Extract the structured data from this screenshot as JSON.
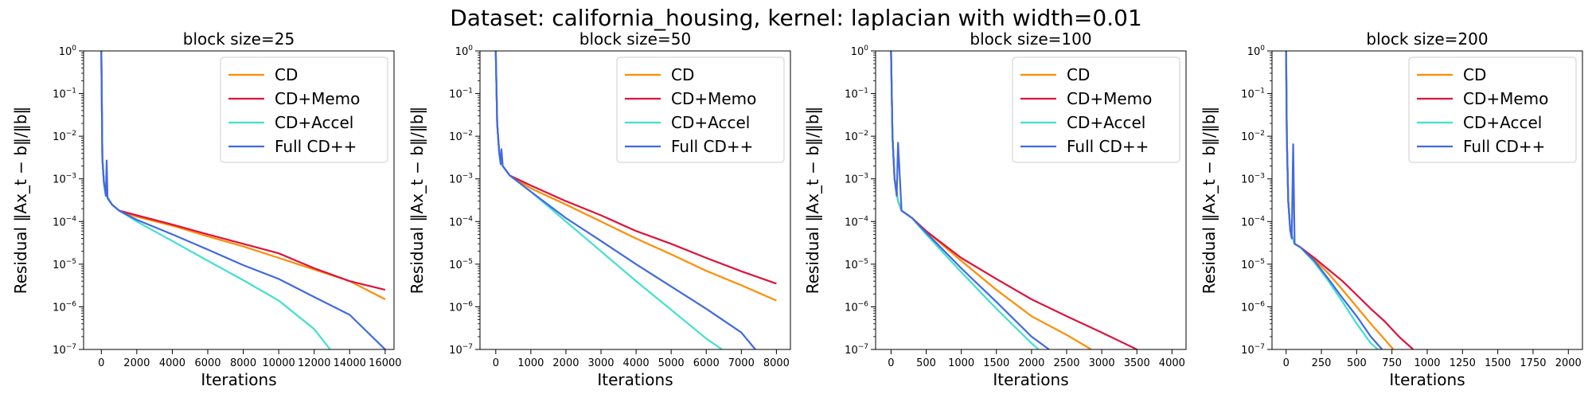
{
  "title": "Dataset: california_housing, kernel: laplacian with width=0.01",
  "colors": {
    "CD": "#ff8c00",
    "CD+Memo": "#dc143c",
    "CD+Accel": "#40e0d0",
    "Full CD++": "#4169e1"
  },
  "chart_data": [
    {
      "type": "line",
      "title": "block size=25",
      "xlabel": "Iterations",
      "ylabel": "Residual ‖Ax_t − b‖/‖b‖",
      "yscale": "log",
      "xlim": [
        -1000,
        16500
      ],
      "ylim": [
        1e-07,
        1
      ],
      "xticks": [
        0,
        2000,
        4000,
        6000,
        8000,
        10000,
        12000,
        14000,
        16000
      ],
      "yticks": [
        "10^0",
        "10^-1",
        "10^-2",
        "10^-3",
        "10^-4",
        "10^-5",
        "10^-6",
        "10^-7"
      ],
      "legend": "top-right",
      "series": [
        {
          "name": "CD",
          "x": [
            0,
            60,
            150,
            300,
            600,
            1000,
            2000,
            4000,
            6000,
            8000,
            10000,
            12000,
            14000,
            16000
          ],
          "y": [
            1,
            0.003,
            0.0008,
            0.0004,
            0.00025,
            0.00018,
            0.00013,
            8e-05,
            4.5e-05,
            2.6e-05,
            1.4e-05,
            7.5e-06,
            4e-06,
            1.5e-06
          ]
        },
        {
          "name": "CD+Memo",
          "x": [
            0,
            60,
            150,
            300,
            600,
            1000,
            2000,
            4000,
            6000,
            8000,
            10000,
            12000,
            14000,
            16000
          ],
          "y": [
            1,
            0.003,
            0.0008,
            0.0004,
            0.00025,
            0.00018,
            0.00014,
            8.5e-05,
            5e-05,
            3e-05,
            1.8e-05,
            8e-06,
            4e-06,
            2.5e-06
          ]
        },
        {
          "name": "CD+Accel",
          "x": [
            0,
            60,
            150,
            300,
            600,
            1000,
            2000,
            4000,
            6000,
            8000,
            10000,
            12000,
            12900
          ],
          "y": [
            1,
            0.003,
            0.0008,
            0.0004,
            0.00025,
            0.00018,
            0.0001,
            3.5e-05,
            1.2e-05,
            4.2e-06,
            1.4e-06,
            3e-07,
            1e-07
          ]
        },
        {
          "name": "Full CD++",
          "x": [
            0,
            60,
            150,
            250,
            300,
            350,
            600,
            1000,
            2000,
            4000,
            6000,
            8000,
            10000,
            12000,
            14000,
            16000
          ],
          "y": [
            1,
            0.003,
            0.0008,
            0.0004,
            0.0027,
            0.00035,
            0.00025,
            0.00018,
            0.00011,
            5e-05,
            2.2e-05,
            9.5e-06,
            4.5e-06,
            1.7e-06,
            6.5e-07,
            1e-07
          ]
        }
      ]
    },
    {
      "type": "line",
      "title": "block size=50",
      "xlabel": "Iterations",
      "ylabel": "Residual ‖Ax_t − b‖/‖b‖",
      "yscale": "log",
      "xlim": [
        -450,
        8400
      ],
      "ylim": [
        1e-07,
        1
      ],
      "xticks": [
        0,
        1000,
        2000,
        3000,
        4000,
        5000,
        6000,
        7000,
        8000
      ],
      "yticks": [
        "10^0",
        "10^-1",
        "10^-2",
        "10^-3",
        "10^-4",
        "10^-5",
        "10^-6",
        "10^-7"
      ],
      "legend": "top-right",
      "series": [
        {
          "name": "CD",
          "x": [
            0,
            40,
            100,
            200,
            400,
            1000,
            2000,
            3000,
            4000,
            5000,
            6000,
            7000,
            8000
          ],
          "y": [
            1,
            0.02,
            0.004,
            0.002,
            0.0012,
            0.0006,
            0.00025,
            0.0001,
            4e-05,
            1.7e-05,
            7e-06,
            3.2e-06,
            1.4e-06
          ]
        },
        {
          "name": "CD+Memo",
          "x": [
            0,
            40,
            100,
            200,
            400,
            1000,
            2000,
            3000,
            4000,
            5000,
            6000,
            7000,
            8000
          ],
          "y": [
            1,
            0.02,
            0.004,
            0.002,
            0.0012,
            0.0007,
            0.0003,
            0.00014,
            6e-05,
            3e-05,
            1.4e-05,
            6.8e-06,
            3.5e-06
          ]
        },
        {
          "name": "CD+Accel",
          "x": [
            0,
            40,
            100,
            200,
            400,
            1000,
            2000,
            3000,
            4000,
            5000,
            6000,
            6450
          ],
          "y": [
            1,
            0.02,
            0.004,
            0.002,
            0.0012,
            0.0005,
            0.0001,
            2e-05,
            4e-06,
            8.5e-07,
            1.8e-07,
            1e-07
          ]
        },
        {
          "name": "Full CD++",
          "x": [
            0,
            40,
            100,
            140,
            160,
            200,
            400,
            1000,
            2000,
            3000,
            4000,
            5000,
            6000,
            7000,
            7400
          ],
          "y": [
            1,
            0.02,
            0.004,
            0.0022,
            0.005,
            0.002,
            0.0012,
            0.0005,
            0.00012,
            3.5e-05,
            1e-05,
            3e-06,
            9e-07,
            2.5e-07,
            1e-07
          ]
        }
      ]
    },
    {
      "type": "line",
      "title": "block size=100",
      "xlabel": "Iterations",
      "ylabel": "Residual ‖Ax_t − b‖/‖b‖",
      "yscale": "log",
      "xlim": [
        -220,
        4200
      ],
      "ylim": [
        1e-07,
        1
      ],
      "xticks": [
        0,
        500,
        1000,
        1500,
        2000,
        2500,
        3000,
        3500,
        4000
      ],
      "yticks": [
        "10^0",
        "10^-1",
        "10^-2",
        "10^-3",
        "10^-4",
        "10^-5",
        "10^-6",
        "10^-7"
      ],
      "legend": "top-right",
      "series": [
        {
          "name": "CD",
          "x": [
            0,
            20,
            50,
            100,
            150,
            300,
            500,
            1000,
            1500,
            2000,
            2500,
            2850
          ],
          "y": [
            1,
            0.01,
            0.001,
            0.0003,
            0.00018,
            0.00012,
            6e-05,
            1.2e-05,
            2.5e-06,
            6e-07,
            2.2e-07,
            1e-07
          ]
        },
        {
          "name": "CD+Memo",
          "x": [
            0,
            20,
            50,
            100,
            150,
            300,
            500,
            1000,
            1500,
            2000,
            2500,
            3000,
            3500
          ],
          "y": [
            1,
            0.01,
            0.001,
            0.0003,
            0.00018,
            0.00012,
            6e-05,
            1.4e-05,
            4.5e-06,
            1.5e-06,
            6e-07,
            2.5e-07,
            1e-07
          ]
        },
        {
          "name": "CD+Accel",
          "x": [
            0,
            20,
            50,
            100,
            150,
            300,
            500,
            1000,
            1500,
            2000,
            2100
          ],
          "y": [
            1,
            0.01,
            0.001,
            0.0003,
            0.00018,
            0.00012,
            5e-05,
            6.5e-06,
            9e-07,
            1.4e-07,
            1e-07
          ]
        },
        {
          "name": "Full CD++",
          "x": [
            0,
            20,
            50,
            80,
            100,
            150,
            300,
            500,
            1000,
            1500,
            2000,
            2250
          ],
          "y": [
            1,
            0.01,
            0.001,
            0.0004,
            0.007,
            0.00018,
            0.00012,
            5.5e-05,
            8e-06,
            1.3e-06,
            2e-07,
            1e-07
          ]
        }
      ]
    },
    {
      "type": "line",
      "title": "block size=200",
      "xlabel": "Iterations",
      "ylabel": "Residual ‖Ax_t − b‖/‖b‖",
      "yscale": "log",
      "xlim": [
        -100,
        2100
      ],
      "ylim": [
        1e-07,
        1
      ],
      "xticks": [
        0,
        250,
        500,
        750,
        1000,
        1250,
        1500,
        1750,
        2000
      ],
      "yticks": [
        "10^0",
        "10^-1",
        "10^-2",
        "10^-3",
        "10^-4",
        "10^-5",
        "10^-6",
        "10^-7"
      ],
      "legend": "top-right",
      "series": [
        {
          "name": "CD",
          "x": [
            0,
            5,
            15,
            30,
            60,
            100,
            200,
            300,
            400,
            500,
            600,
            700,
            760
          ],
          "y": [
            1,
            0.01,
            0.0003,
            6e-05,
            3e-05,
            2.5e-05,
            1.3e-05,
            6e-06,
            2.5e-06,
            1e-06,
            4e-07,
            1.7e-07,
            1e-07
          ]
        },
        {
          "name": "CD+Memo",
          "x": [
            0,
            5,
            15,
            30,
            60,
            100,
            200,
            300,
            400,
            500,
            600,
            700,
            800,
            900
          ],
          "y": [
            1,
            0.01,
            0.0003,
            6e-05,
            3e-05,
            2.5e-05,
            1.4e-05,
            7.5e-06,
            4e-06,
            1.9e-06,
            9e-07,
            4.5e-07,
            2e-07,
            1e-07
          ]
        },
        {
          "name": "CD+Accel",
          "x": [
            0,
            5,
            15,
            30,
            60,
            100,
            200,
            300,
            400,
            500,
            600,
            650
          ],
          "y": [
            1,
            0.01,
            0.0003,
            6e-05,
            3e-05,
            2.5e-05,
            1.1e-05,
            4e-06,
            1.3e-06,
            4e-07,
            1.4e-07,
            1e-07
          ]
        },
        {
          "name": "Full CD++",
          "x": [
            0,
            5,
            15,
            30,
            40,
            50,
            60,
            100,
            200,
            300,
            400,
            500,
            600,
            680
          ],
          "y": [
            1,
            0.01,
            0.0003,
            6e-05,
            4e-05,
            0.0065,
            3e-05,
            2.5e-05,
            1.2e-05,
            4.5e-06,
            1.6e-06,
            6e-07,
            2e-07,
            1e-07
          ]
        }
      ]
    }
  ]
}
